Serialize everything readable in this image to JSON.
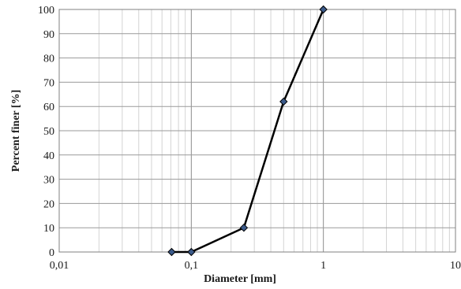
{
  "chart_data": {
    "type": "scatter",
    "xlabel": "Diameter [mm]",
    "ylabel": "Percent finer [%]",
    "x_scale": "log",
    "xlim": [
      0.01,
      10
    ],
    "ylim": [
      0,
      100
    ],
    "x_tick_labels": [
      "0,01",
      "0,1",
      "1",
      "10"
    ],
    "y_tick_labels": [
      "0",
      "10",
      "20",
      "30",
      "40",
      "50",
      "60",
      "70",
      "80",
      "90",
      "100"
    ],
    "grid": true,
    "legend": "none",
    "series": [
      {
        "x": [
          0.071,
          0.1,
          0.25,
          0.5,
          1.0
        ],
        "y": [
          0,
          0,
          10,
          62,
          100
        ],
        "line_color": "#000000",
        "marker_color": "#3b5a8a",
        "marker": "diamond"
      }
    ]
  }
}
